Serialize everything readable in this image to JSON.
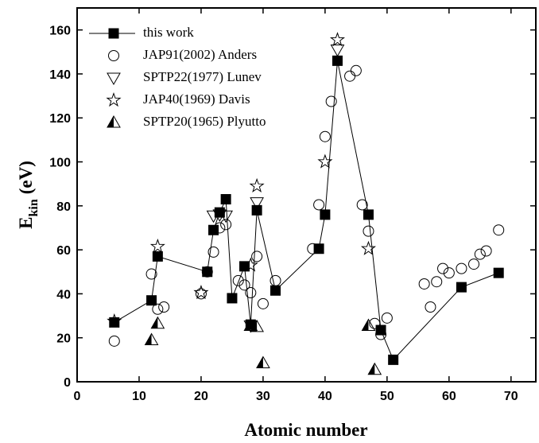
{
  "chart_data": {
    "type": "scatter",
    "xlabel": "Atomic number",
    "ylabel": "E",
    "ylabel_sub": "kin",
    "ylabel_unit": "(eV)",
    "xlim": [
      0,
      74
    ],
    "ylim": [
      0,
      170
    ],
    "xticks": [
      0,
      10,
      20,
      30,
      40,
      50,
      60,
      70
    ],
    "yticks": [
      0,
      20,
      40,
      60,
      80,
      100,
      120,
      140,
      160
    ],
    "legend": "upper left",
    "series": [
      {
        "name": "this work",
        "color": "#000000",
        "marker": "square",
        "line": true,
        "x": [
          6,
          12,
          13,
          21,
          22,
          23,
          24,
          25,
          27,
          28,
          29,
          32,
          39,
          40,
          42,
          47,
          49,
          51,
          62,
          68
        ],
        "values": [
          27,
          37,
          57,
          50,
          69,
          77,
          83,
          38,
          52.5,
          26,
          78,
          41.5,
          60.5,
          76,
          146,
          76,
          23.5,
          10,
          43,
          49.5
        ]
      },
      {
        "name": "JAP91(2002) Anders",
        "color": "#000000",
        "marker": "circle",
        "line": false,
        "x": [
          6,
          12,
          13,
          14,
          20,
          21,
          22,
          23,
          24,
          26,
          27,
          28,
          29,
          30,
          32,
          38,
          39,
          40,
          41,
          44,
          45,
          46,
          47,
          48,
          49,
          50,
          56,
          57,
          58,
          59,
          60,
          62,
          64,
          65,
          66,
          68
        ],
        "values": [
          18.5,
          49,
          33,
          34,
          40,
          50,
          59,
          70,
          71.5,
          46,
          44,
          40.5,
          57,
          35.5,
          46,
          60.5,
          80.5,
          111.5,
          127.5,
          139,
          141.5,
          80.5,
          68.5,
          26.5,
          21.5,
          29,
          44.5,
          34,
          45.5,
          51.5,
          49.5,
          51.5,
          53.5,
          58,
          59.5,
          69
        ]
      },
      {
        "name": "SPTP22(1977) Lunev",
        "color": "#000000",
        "marker": "triangle-down",
        "line": false,
        "x": [
          22,
          23,
          24,
          28,
          29,
          42
        ],
        "values": [
          75.5,
          76,
          75.5,
          25.5,
          81.5,
          151
        ]
      },
      {
        "name": "JAP40(1969) Davis",
        "color": "#000000",
        "marker": "star",
        "line": false,
        "x": [
          6,
          13,
          20,
          28,
          29,
          40,
          42,
          47
        ],
        "values": [
          27.5,
          61.5,
          40.5,
          53,
          89,
          100,
          155.5,
          60.5
        ]
      },
      {
        "name": "SPTP20(1965) Plyutto",
        "color": "#000000",
        "marker": "half-triangle",
        "line": false,
        "x": [
          12,
          13,
          28,
          29,
          30,
          47,
          48
        ],
        "values": [
          19,
          26.5,
          25.5,
          25,
          8.5,
          25.5,
          5.5
        ]
      }
    ]
  }
}
